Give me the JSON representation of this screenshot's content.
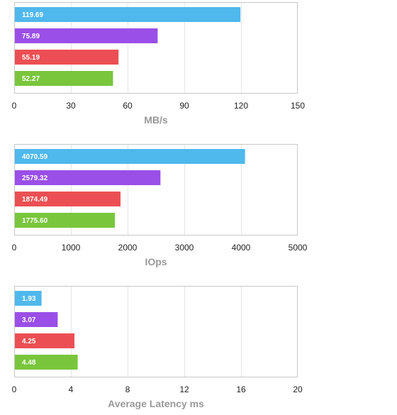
{
  "colors": [
    "#4fb8ec",
    "#9a4fe8",
    "#ec4f53",
    "#79c63c"
  ],
  "chart_data": [
    {
      "type": "bar",
      "orientation": "horizontal",
      "xlabel": "MB/s",
      "xlim": [
        0,
        150
      ],
      "ticks": [
        "0",
        "30",
        "60",
        "90",
        "120",
        "150"
      ],
      "tick_values": [
        0,
        30,
        60,
        90,
        120,
        150
      ],
      "values": [
        119.69,
        75.89,
        55.19,
        52.27
      ],
      "value_labels": [
        "119.69",
        "75.89",
        "55.19",
        "52.27"
      ],
      "grid": true
    },
    {
      "type": "bar",
      "orientation": "horizontal",
      "xlabel": "IOps",
      "xlim": [
        0,
        5000
      ],
      "ticks": [
        "0",
        "1000",
        "2000",
        "3000",
        "4000",
        "5000"
      ],
      "tick_values": [
        0,
        1000,
        2000,
        3000,
        4000,
        5000
      ],
      "values": [
        4070.59,
        2579.32,
        1874.49,
        1775.6
      ],
      "value_labels": [
        "4070.59",
        "2579.32",
        "1874.49",
        "1775.60"
      ],
      "grid": true
    },
    {
      "type": "bar",
      "orientation": "horizontal",
      "xlabel": "Average Latency ms",
      "xlim": [
        0,
        20
      ],
      "ticks": [
        "0",
        "4",
        "8",
        "12",
        "16",
        "20"
      ],
      "tick_values": [
        0,
        4,
        8,
        12,
        16,
        20
      ],
      "values": [
        1.93,
        3.07,
        4.25,
        4.48
      ],
      "value_labels": [
        "1.93",
        "3.07",
        "4.25",
        "4.48"
      ],
      "grid": true
    }
  ]
}
